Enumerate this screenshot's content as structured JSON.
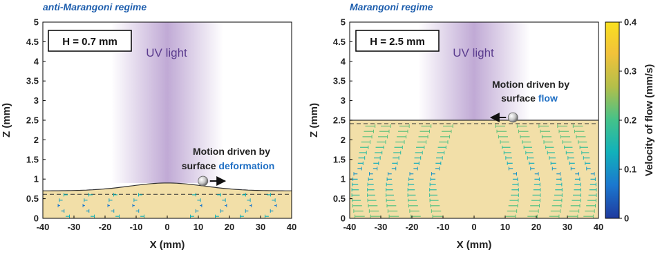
{
  "chart_data": [
    {
      "type": "scatter",
      "title": "anti-Marangoni regime",
      "box_label": "H = 0.7 mm",
      "uv_label": "UV light",
      "annotation_line1": "Motion driven by",
      "annotation_line2_prefix": "surface ",
      "annotation_line2_highlight": "deformation",
      "xlabel": "X (mm)",
      "ylabel": "Z (mm)",
      "xlim": [
        -40,
        40
      ],
      "ylim": [
        0,
        5
      ],
      "xticks": [
        -40,
        -30,
        -20,
        -10,
        0,
        10,
        20,
        30,
        40
      ],
      "yticks": [
        0,
        0.5,
        1,
        1.5,
        2,
        2.5,
        3,
        3.5,
        4,
        4.5,
        5
      ],
      "liquid_height_mm": 0.7,
      "surface_peak_mm": 0.9,
      "particle": {
        "x": 11.5,
        "z": 0.95,
        "direction": "right"
      },
      "flow_columns_x": [
        -32,
        -24,
        -16,
        -8,
        8,
        16,
        24,
        32
      ]
    },
    {
      "type": "scatter",
      "title": "Marangoni regime",
      "box_label": "H = 2.5 mm",
      "uv_label": "UV light",
      "annotation_line1": "Motion driven by",
      "annotation_line2_prefix": "surface ",
      "annotation_line2_highlight": "flow",
      "xlabel": "X (mm)",
      "ylabel": "Z (mm)",
      "xlim": [
        -40,
        40
      ],
      "ylim": [
        0,
        5
      ],
      "xticks": [
        -40,
        -30,
        -20,
        -10,
        0,
        10,
        20,
        30,
        40
      ],
      "yticks": [
        0,
        0.5,
        1,
        1.5,
        2,
        2.5,
        3,
        3.5,
        4,
        4.5,
        5
      ],
      "liquid_height_mm": 2.5,
      "surface_peak_mm": 2.5,
      "particle": {
        "x": 12.5,
        "z": 2.57,
        "direction": "left"
      },
      "flow_columns_x": [
        -35,
        -30,
        -24,
        -17,
        -10,
        10,
        17,
        24,
        30,
        35
      ]
    }
  ],
  "colorbar": {
    "label": "Velocity of flow (mm/s)",
    "range": [
      0,
      0.4
    ],
    "ticks": [
      "0",
      "0.1",
      "0.2",
      "0.3",
      "0.4"
    ],
    "colors": [
      "#1f3a9e",
      "#1b78cf",
      "#12b2ba",
      "#43c28a",
      "#b3bf4a",
      "#f2c23a",
      "#f9e020"
    ]
  },
  "colors": {
    "liquid": "#f2dfa8",
    "uv": "#8d64b3",
    "regime_title": "#1f5fae",
    "highlight": "#1f6fc4"
  }
}
